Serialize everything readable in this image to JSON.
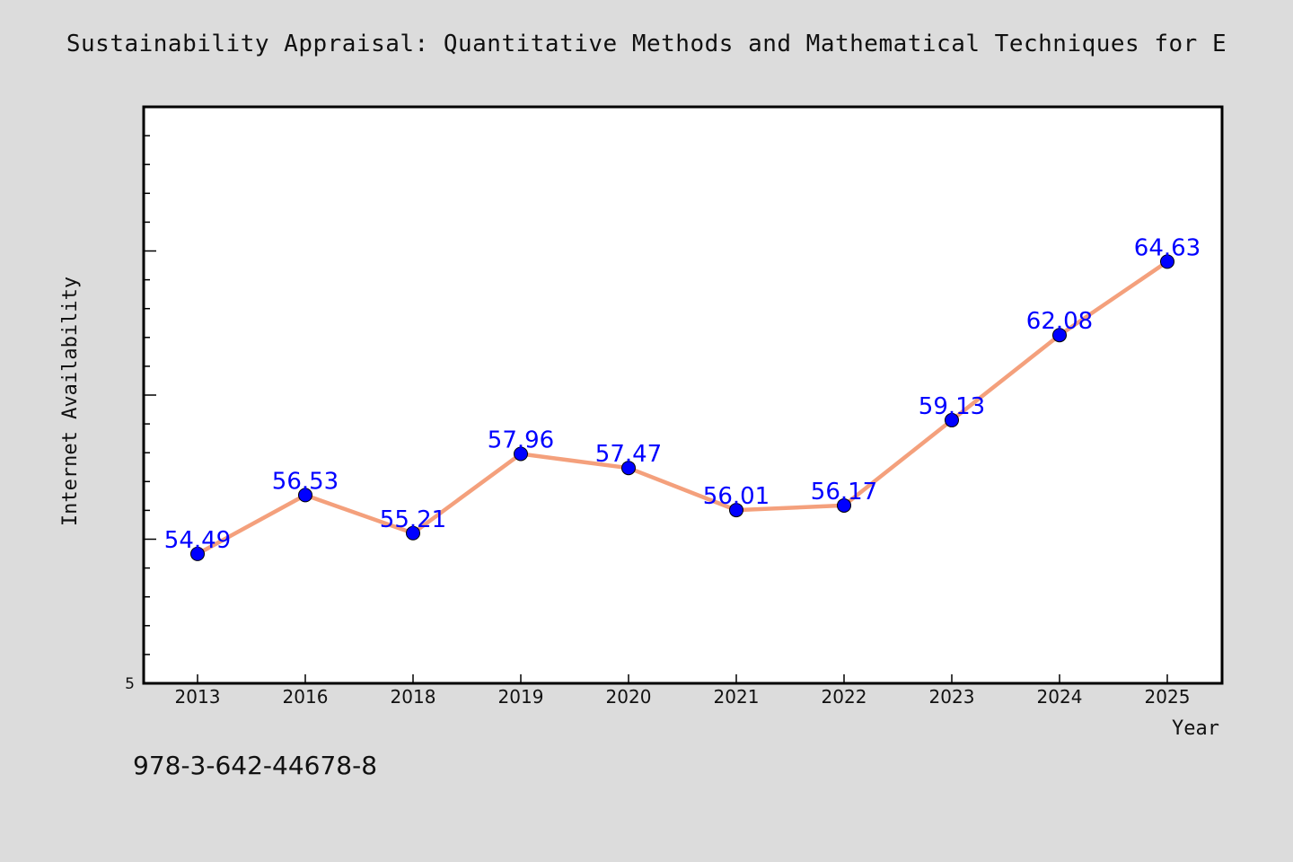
{
  "chart_data": {
    "type": "line",
    "title": "Sustainability Appraisal: Quantitative Methods and Mathematical Techniques for E",
    "xlabel": "Year",
    "ylabel": "Internet Availability",
    "categories": [
      "2013",
      "2016",
      "2018",
      "2019",
      "2020",
      "2021",
      "2022",
      "2023",
      "2024",
      "2025"
    ],
    "series": [
      {
        "values": [
          54.49,
          56.53,
          55.21,
          57.96,
          57.47,
          56.01,
          56.17,
          59.13,
          62.08,
          64.63
        ],
        "data_labels": [
          "54.49",
          "56.53",
          "55.21",
          "57.96",
          "57.47",
          "56.01",
          "56.17",
          "59.13",
          "62.08",
          "64.63"
        ]
      }
    ],
    "ylim": [
      50,
      70
    ],
    "y_tick_labels": [
      "5"
    ],
    "line_color": "#f4a07c",
    "marker_color": "#0000ff",
    "label_color": "#0000ff",
    "grid": false,
    "legend": "none"
  },
  "footer": {
    "id_text": "978-3-642-44678-8"
  }
}
